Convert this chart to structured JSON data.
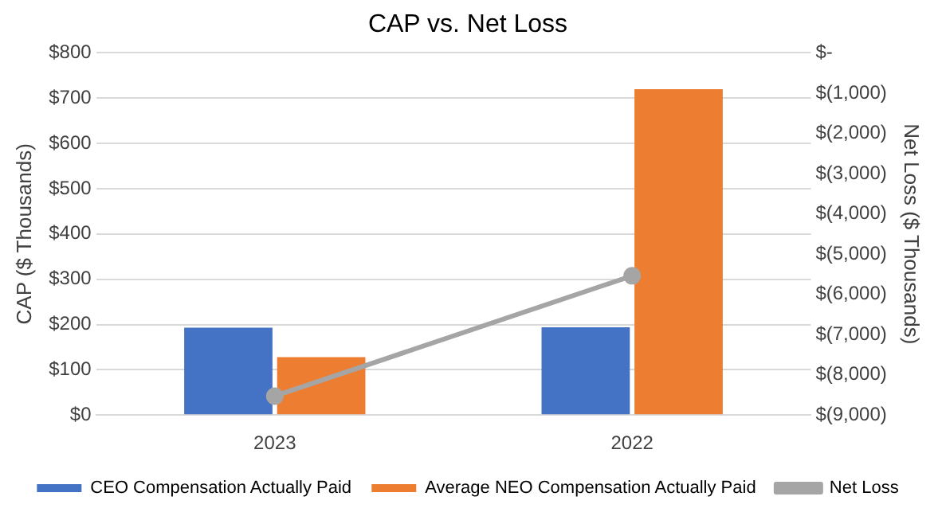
{
  "chart_data": {
    "type": "bar",
    "title": "CAP vs. Net Loss",
    "ylabel": "CAP ($ Thousands)",
    "y2label": "Net Loss ($ Thousands)",
    "categories": [
      "2023",
      "2022"
    ],
    "series": [
      {
        "name": "CEO Compensation Actually Paid",
        "color": "#4472c4",
        "values": [
          193,
          194
        ]
      },
      {
        "name": "Average NEO Compensation Actually Paid",
        "color": "#ed7d31",
        "values": [
          128,
          720
        ]
      },
      {
        "name": "Net Loss",
        "type": "line",
        "axis": "y2",
        "color": "#a5a5a5",
        "values": [
          -8530,
          -5540
        ],
        "marker": "circle"
      }
    ],
    "ylim": [
      0,
      800
    ],
    "yticks": [
      {
        "value": 0,
        "label": "$0"
      },
      {
        "value": 100,
        "label": "$100"
      },
      {
        "value": 200,
        "label": "$200"
      },
      {
        "value": 300,
        "label": "$300"
      },
      {
        "value": 400,
        "label": "$400"
      },
      {
        "value": 500,
        "label": "$500"
      },
      {
        "value": 600,
        "label": "$600"
      },
      {
        "value": 700,
        "label": "$700"
      },
      {
        "value": 800,
        "label": "$800"
      }
    ],
    "y2lim": [
      -9000,
      0
    ],
    "y2ticks": [
      {
        "value": -9000,
        "label": "$(9,000)"
      },
      {
        "value": -8000,
        "label": "$(8,000)"
      },
      {
        "value": -7000,
        "label": "$(7,000)"
      },
      {
        "value": -6000,
        "label": "$(6,000)"
      },
      {
        "value": -5000,
        "label": "$(5,000)"
      },
      {
        "value": -4000,
        "label": "$(4,000)"
      },
      {
        "value": -3000,
        "label": "$(3,000)"
      },
      {
        "value": -2000,
        "label": "$(2,000)"
      },
      {
        "value": -1000,
        "label": "$(1,000)"
      },
      {
        "value": 0,
        "label": "$-"
      }
    ],
    "grid": "y",
    "legend": "bottom"
  }
}
